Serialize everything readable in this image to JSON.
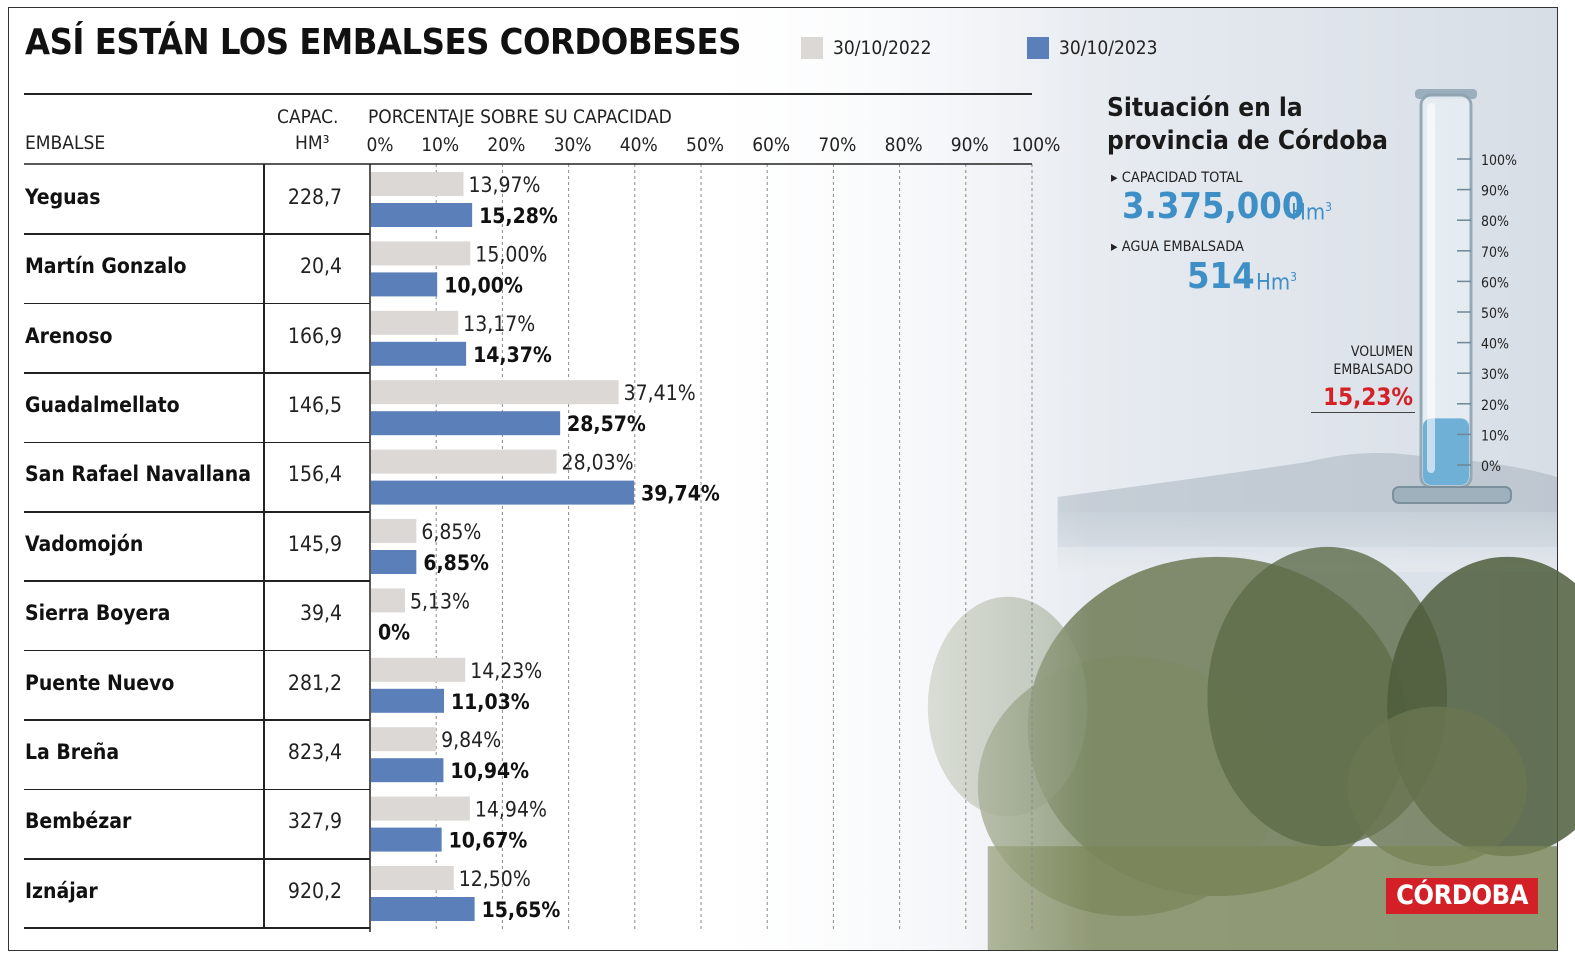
{
  "title": "ASÍ ESTÁN LOS EMBALSES CORDOBESES",
  "legend": [
    {
      "label": "30/10/2022",
      "color": "#dbd8d5"
    },
    {
      "label": "30/10/2023",
      "color": "#5b80b9"
    }
  ],
  "table_headers": {
    "embalse": "EMBALSE",
    "capac_line1": "CAPAC.",
    "capac_line2": "HM³",
    "porcentaje": "PORCENTAJE SOBRE SU CAPACIDAD"
  },
  "chart_data": {
    "type": "bar",
    "orientation": "horizontal",
    "xlim": [
      0,
      100
    ],
    "x_ticks": [
      "0%",
      "10%",
      "20%",
      "30%",
      "40%",
      "50%",
      "60%",
      "70%",
      "80%",
      "90%",
      "100%"
    ],
    "categories": [
      "Yeguas",
      "Martín Gonzalo",
      "Arenoso",
      "Guadalmellato",
      "San Rafael Navallana",
      "Vadomojón",
      "Sierra Boyera",
      "Puente Nuevo",
      "La Breña",
      "Bembézar",
      "Iznájar"
    ],
    "capacities": [
      "228,7",
      "20,4",
      "166,9",
      "146,5",
      "156,4",
      "145,9",
      "39,4",
      "281,2",
      "823,4",
      "327,9",
      "920,2"
    ],
    "series": [
      {
        "name": "30/10/2022",
        "values": [
          13.97,
          15.0,
          13.17,
          37.41,
          28.03,
          6.85,
          5.13,
          14.23,
          9.84,
          14.94,
          12.5
        ],
        "labels": [
          "13,97%",
          "15,00%",
          "13,17%",
          "37,41%",
          "28,03%",
          "6,85%",
          "5,13%",
          "14,23%",
          "9,84%",
          "14,94%",
          "12,50%"
        ]
      },
      {
        "name": "30/10/2023",
        "values": [
          15.28,
          10.0,
          14.37,
          28.57,
          39.74,
          6.85,
          0,
          11.03,
          10.94,
          10.67,
          15.65
        ],
        "labels": [
          "15,28%",
          "10,00%",
          "14,37%",
          "28,57%",
          "39,74%",
          "6,85%",
          "0%",
          "11,03%",
          "10,94%",
          "10,67%",
          "15,65%"
        ]
      }
    ]
  },
  "province": {
    "title_line1": "Situación en la",
    "title_line2": "provincia de Córdoba",
    "capacity_label": "CAPACIDAD TOTAL",
    "capacity_value": "3.375,000",
    "stored_label": "AGUA EMBALSADA",
    "stored_value": "514",
    "unit": "Hm",
    "unit_sup": "3",
    "gauge": {
      "ticks": [
        "100%",
        "90%",
        "80%",
        "70%",
        "60%",
        "50%",
        "40%",
        "30%",
        "20%",
        "10%",
        "0%"
      ],
      "volume_label_line1": "VOLUMEN",
      "volume_label_line2": "EMBALSADO",
      "volume_pct_label": "15,23%",
      "volume_pct": 15.23
    }
  },
  "brand": "CÓRDOBA",
  "colors": {
    "accent_red": "#d42027",
    "blue_text": "#3f8fc7",
    "bar_2022": "#dbd8d5",
    "bar_2023": "#5b80b9"
  }
}
